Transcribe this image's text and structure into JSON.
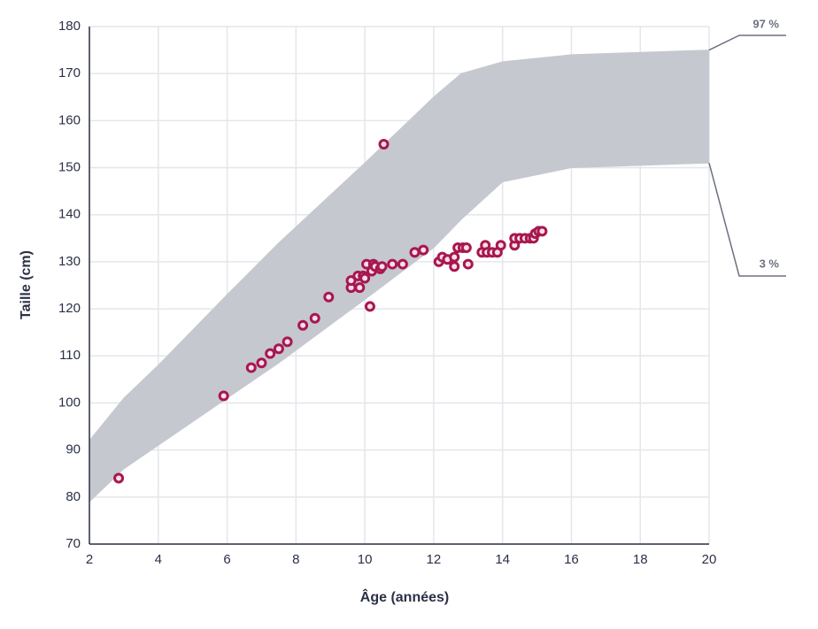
{
  "chart_data": {
    "type": "scatter",
    "x_label": "Âge (années)",
    "y_label": "Taille (cm)",
    "xlim": [
      2,
      20
    ],
    "xticks": [
      2,
      4,
      6,
      8,
      10,
      12,
      14,
      16,
      18,
      20
    ],
    "ylim": [
      70,
      180
    ],
    "yticks": [
      70,
      80,
      90,
      100,
      110,
      120,
      130,
      140,
      150,
      160,
      170,
      180
    ],
    "grid": true,
    "band_color": "#c5c8cf",
    "band_x": [
      2,
      3,
      4,
      6,
      7.5,
      10,
      12,
      12.8,
      14,
      16,
      20
    ],
    "series": [
      {
        "name": "97 %",
        "values": [
          92,
          101,
          108,
          123,
          134,
          151,
          165,
          170,
          172.5,
          174,
          175
        ]
      },
      {
        "name": "3 %",
        "values": [
          79,
          86,
          91,
          101,
          108.5,
          122,
          133,
          139,
          147,
          150,
          151
        ]
      }
    ],
    "points": {
      "color": "#a8174f",
      "x": [
        2.85,
        5.9,
        6.7,
        7.0,
        7.25,
        7.5,
        7.75,
        8.2,
        8.55,
        8.95,
        9.6,
        9.6,
        9.8,
        9.85,
        9.95,
        10.0,
        10.05,
        10.15,
        10.2,
        10.25,
        10.3,
        10.45,
        10.5,
        10.55,
        10.8,
        11.1,
        11.45,
        11.7,
        12.15,
        12.25,
        12.4,
        12.6,
        12.6,
        12.7,
        12.85,
        12.95,
        13.0,
        13.4,
        13.5,
        13.55,
        13.7,
        13.85,
        13.95,
        14.35,
        14.35,
        14.5,
        14.65,
        14.8,
        14.9,
        14.95,
        15.05,
        15.15
      ],
      "y": [
        84,
        101.5,
        107.5,
        108.5,
        110.5,
        111.5,
        113,
        116.5,
        118,
        122.5,
        124.5,
        126,
        127,
        124.5,
        127,
        126.5,
        129.5,
        120.5,
        128,
        129.5,
        129,
        128.5,
        129,
        155,
        129.5,
        129.5,
        132,
        132.5,
        130,
        131,
        130.5,
        131,
        129,
        133,
        133,
        133,
        129.5,
        132,
        133.5,
        132,
        132,
        132,
        133.5,
        133.5,
        135,
        135,
        135,
        135,
        135,
        136,
        136.5,
        136.5
      ]
    }
  }
}
